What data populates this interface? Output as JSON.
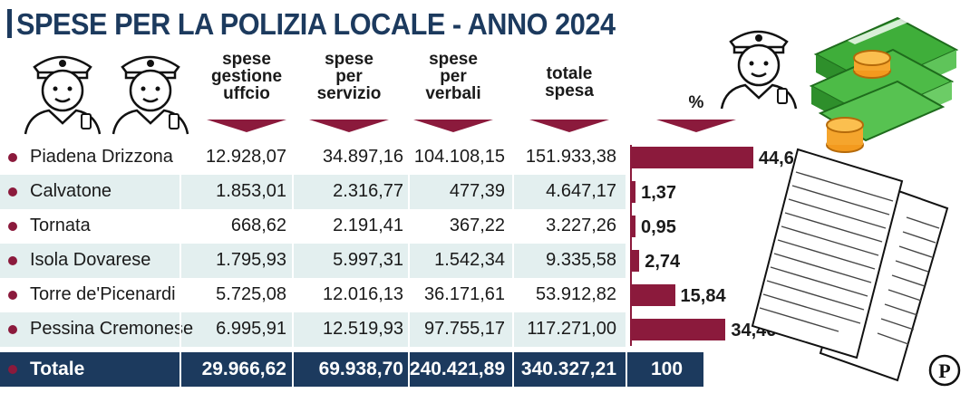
{
  "title": "SPESE PER LA POLIZIA LOCALE - ANNO 2024",
  "chart_data": {
    "type": "table",
    "title": "SPESE PER LA POLIZIA LOCALE - ANNO 2024",
    "columns": [
      "spese gestione uffcio",
      "spese per servizio",
      "spese per verbali",
      "totale spesa",
      "%"
    ],
    "header_lines": [
      [
        "spese",
        "gestione",
        "uffcio"
      ],
      [
        "spese",
        "per",
        "servizio"
      ],
      [
        "spese",
        "per",
        "verbali"
      ],
      [
        "totale",
        "spesa"
      ],
      [
        "%"
      ]
    ],
    "rows": [
      {
        "name": "Piadena Drizzona",
        "values": [
          "12.928,07",
          "34.897,16",
          "104.108,15",
          "151.933,38"
        ],
        "pct_label": "44,64",
        "pct": 44.64
      },
      {
        "name": "Calvatone",
        "values": [
          "1.853,01",
          "2.316,77",
          "477,39",
          "4.647,17"
        ],
        "pct_label": "1,37",
        "pct": 1.37
      },
      {
        "name": "Tornata",
        "values": [
          "668,62",
          "2.191,41",
          "367,22",
          "3.227,26"
        ],
        "pct_label": "0,95",
        "pct": 0.95
      },
      {
        "name": "Isola Dovarese",
        "values": [
          "1.795,93",
          "5.997,31",
          "1.542,34",
          "9.335,58"
        ],
        "pct_label": "2,74",
        "pct": 2.74
      },
      {
        "name": "Torre de'Picenardi",
        "values": [
          "5.725,08",
          "12.016,13",
          "36.171,61",
          "53.912,82"
        ],
        "pct_label": "15,84",
        "pct": 15.84
      },
      {
        "name": "Pessina Cremonese",
        "values": [
          "6.995,91",
          "12.519,93",
          "97.755,17",
          "117.271,00"
        ],
        "pct_label": "34,46",
        "pct": 34.46
      }
    ],
    "total": {
      "name": "Totale",
      "values": [
        "29.966,62",
        "69.938,70",
        "240.421,89",
        "340.327,21"
      ],
      "pct_label": "100"
    },
    "colors": {
      "title": "#1c3a5e",
      "accent": "#8b1a3c",
      "total_bg": "#1c3a5e",
      "row_tint": "#e3efef"
    }
  },
  "icons": [
    "police-officer-icon",
    "police-officer-icon",
    "police-officer-icon",
    "money-stack-icon",
    "documents-icon",
    "publisher-logo-icon"
  ],
  "logo": "P"
}
